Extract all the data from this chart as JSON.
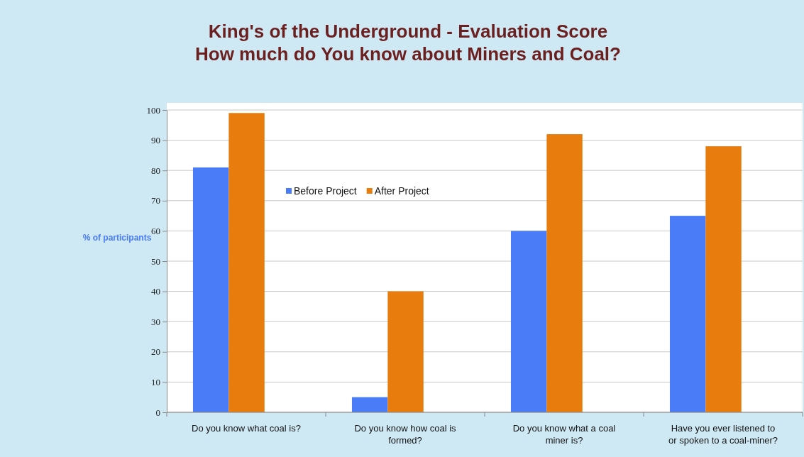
{
  "chart_data": {
    "type": "bar",
    "title": "King's of the Underground - Evaluation Score\nHow much do You know about Miners and Coal?",
    "ylabel": "% of participants",
    "categories": [
      "Do you know what coal is?",
      "Do you know how coal is formed?",
      "Do you know what a coal miner is?",
      "Have you ever listened to or spoken to a coal-miner?"
    ],
    "series": [
      {
        "name": "Before Project",
        "color": "#4a7cf7",
        "values": [
          81,
          5,
          60,
          65
        ]
      },
      {
        "name": "After Project",
        "color": "#e87c0c",
        "values": [
          99,
          40,
          92,
          88
        ]
      }
    ],
    "ylim": [
      0,
      100
    ],
    "yticks": [
      0,
      10,
      20,
      30,
      40,
      50,
      60,
      70,
      80,
      90,
      100
    ],
    "grid": "y",
    "legend": "top"
  }
}
